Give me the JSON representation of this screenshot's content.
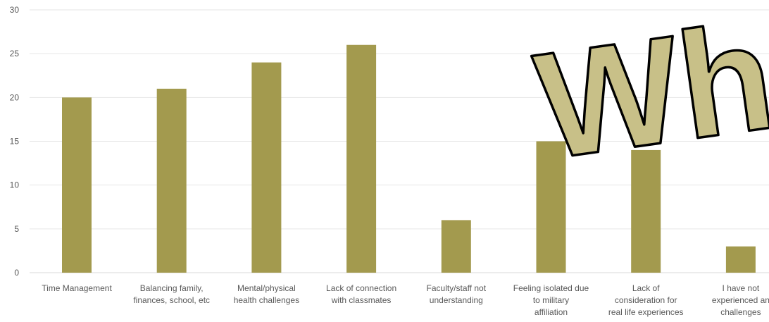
{
  "chart_data": {
    "type": "bar",
    "categories": [
      [
        "Time Management"
      ],
      [
        "Balancing family,",
        "finances, school, etc"
      ],
      [
        "Mental/physical",
        "health challenges"
      ],
      [
        "Lack of connection",
        "with classmates"
      ],
      [
        "Faculty/staff not",
        "understanding"
      ],
      [
        "Feeling isolated due",
        "to military",
        "affiliation"
      ],
      [
        "Lack of",
        "consideration for",
        "real life experiences"
      ],
      [
        "I have not",
        "experienced an",
        "challenges"
      ]
    ],
    "values": [
      20,
      21,
      24,
      26,
      6,
      15,
      14,
      3
    ],
    "ylim": [
      0,
      30
    ],
    "yticks": [
      0,
      5,
      10,
      15,
      20,
      25,
      30
    ],
    "grid": true,
    "bar_color": "#a39a4e",
    "grid_color": "#e6e6e6"
  },
  "overlay": {
    "wordart_text": "Wh",
    "fill_color": "#c8c088",
    "outline_color": "#000000"
  }
}
